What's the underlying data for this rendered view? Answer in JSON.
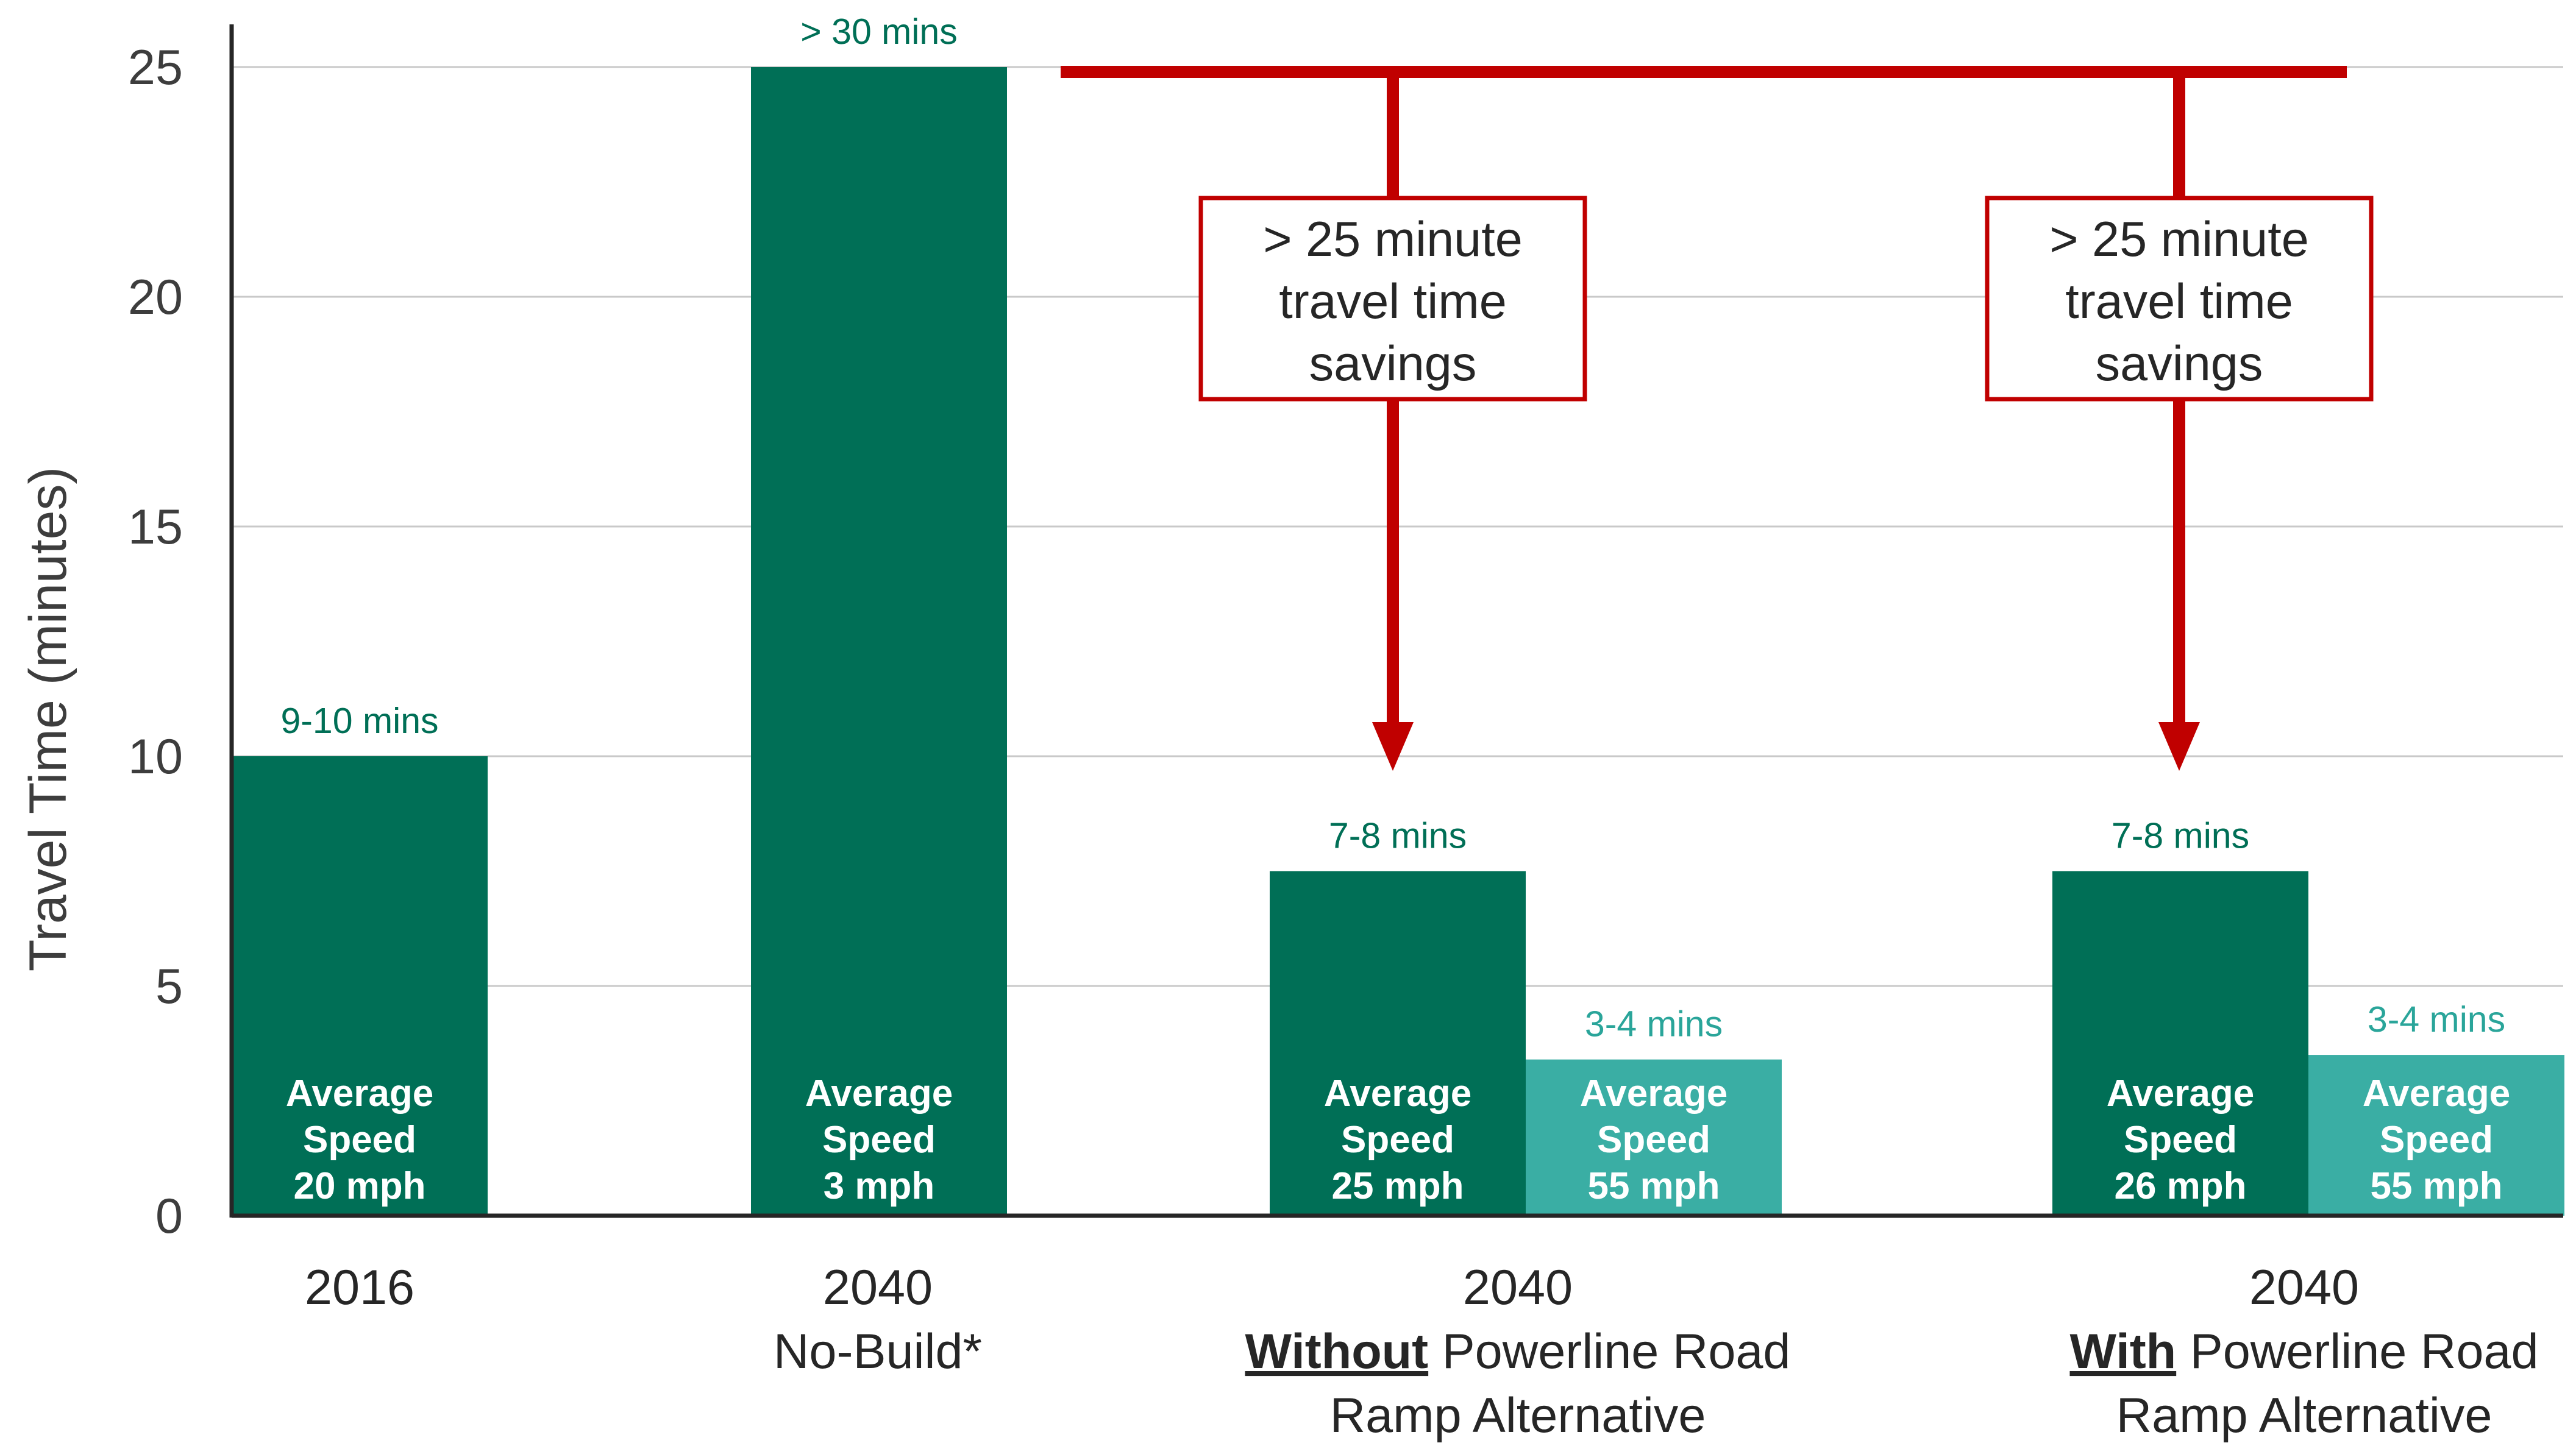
{
  "chart_data": {
    "type": "bar",
    "ylabel": "Travel Time (minutes)",
    "ylim": [
      0,
      25
    ],
    "yticks": [
      "0",
      "5",
      "10",
      "15",
      "20",
      "25"
    ],
    "grid": true,
    "groups": [
      {
        "category_lines": [
          "2016"
        ],
        "bars": [
          {
            "series": "dark",
            "value": 10,
            "value_label": "9-10 mins",
            "inner_label": [
              "Average",
              "Speed",
              "20 mph"
            ]
          }
        ]
      },
      {
        "category_lines": [
          "2040",
          "No-Build*"
        ],
        "bars": [
          {
            "series": "dark",
            "value": 25,
            "value_label": "> 30 mins",
            "inner_label": [
              "Average",
              "Speed",
              "3 mph"
            ]
          }
        ]
      },
      {
        "category_lines": [
          "2040"
        ],
        "category_emphasis": "Without",
        "category_rest": "Powerline Road",
        "category_last": "Ramp Alternative",
        "bars": [
          {
            "series": "dark",
            "value": 7.5,
            "value_label": "7-8 mins",
            "inner_label": [
              "Average",
              "Speed",
              "25 mph"
            ]
          },
          {
            "series": "light",
            "value": 3.4,
            "value_label": "3-4  mins",
            "inner_label": [
              "Average",
              "Speed",
              "55 mph"
            ]
          }
        ]
      },
      {
        "category_lines": [
          "2040"
        ],
        "category_emphasis": "With",
        "category_rest": "Powerline Road",
        "category_last": "Ramp Alternative",
        "bars": [
          {
            "series": "dark",
            "value": 7.5,
            "value_label": "7-8 mins",
            "inner_label": [
              "Average",
              "Speed",
              "26 mph"
            ]
          },
          {
            "series": "light",
            "value": 3.5,
            "value_label": "3-4  mins",
            "inner_label": [
              "Average",
              "Speed",
              "55 mph"
            ]
          }
        ]
      }
    ],
    "callouts": [
      {
        "lines": [
          "> 25 minute",
          "travel time",
          "savings"
        ]
      },
      {
        "lines": [
          "> 25 minute",
          "travel time",
          "savings"
        ]
      }
    ],
    "colors": {
      "dark": "#006f56",
      "light": "#3aaea4",
      "arrow": "#c00000",
      "grid": "#c9c9c9",
      "axis": "#262626"
    }
  }
}
